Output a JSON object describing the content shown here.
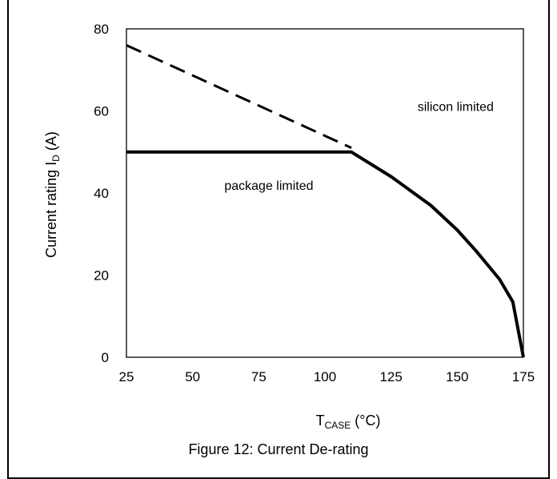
{
  "chart_data": {
    "type": "line",
    "xlabel": {
      "main": "T",
      "sub": "CASE",
      "unit": " (°C)"
    },
    "ylabel": {
      "main": "Current rating I",
      "sub": "D",
      "unit": " (A)"
    },
    "xlim": [
      25,
      175
    ],
    "ylim": [
      0,
      80
    ],
    "xticks": [
      "25",
      "50",
      "75",
      "100",
      "125",
      "150",
      "175"
    ],
    "yticks": [
      "0",
      "20",
      "40",
      "60",
      "80"
    ],
    "grid": false,
    "legend": "none",
    "series": [
      {
        "style": "dashed",
        "color": "#000000",
        "points": [
          [
            25,
            76
          ],
          [
            110,
            51
          ]
        ]
      },
      {
        "style": "solid",
        "color": "#000000",
        "points": [
          [
            25,
            50
          ],
          [
            110,
            50
          ],
          [
            125,
            44
          ],
          [
            140,
            37
          ],
          [
            150,
            31
          ],
          [
            157,
            26
          ],
          [
            166,
            19
          ],
          [
            171,
            13.5
          ],
          [
            175,
            0
          ]
        ]
      }
    ],
    "annotations": [
      {
        "text": "silicon limited",
        "x": 135,
        "y": 60
      },
      {
        "text": "package limited",
        "x": 62,
        "y": 40.8
      }
    ]
  },
  "caption": "Figure 12: Current De-rating"
}
